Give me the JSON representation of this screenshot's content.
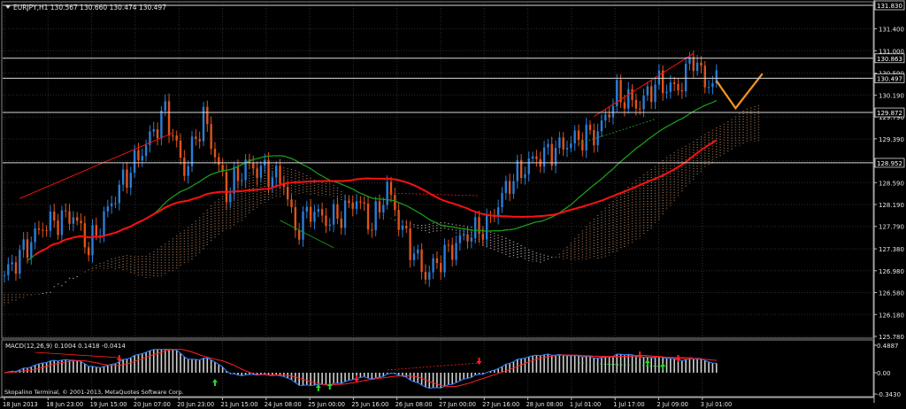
{
  "main_chart": {
    "symbol_header": "EURJPY,H1  130.567 130.660 130.474 130.497",
    "price_range": [
      125.78,
      131.83
    ],
    "y_ticks": [
      "131.830",
      "131.400",
      "131.000",
      "130.590",
      "130.190",
      "129.790",
      "129.390",
      "128.990",
      "128.590",
      "128.190",
      "127.790",
      "127.380",
      "126.980",
      "126.580",
      "126.180",
      "125.780"
    ],
    "level_labels": [
      {
        "label": "131.830",
        "value": 131.83
      },
      {
        "label": "130.863",
        "value": 130.863
      },
      {
        "label": "130.497",
        "value": 130.497
      },
      {
        "label": "129.872",
        "value": 129.872
      },
      {
        "label": "128.952",
        "value": 128.952
      }
    ]
  },
  "macd_panel": {
    "header": "MACD(12,26,9) 0.1004 0.1418 -0.0414",
    "y_labels": [
      "0.4887",
      "0.00",
      "-0.3430"
    ],
    "copyright": "Skopalino Terminal, © 2001-2013, MetaQuotes Software Corp."
  },
  "x_axis": {
    "labels": [
      "18 Jun 2013",
      "18 Jun 23:00",
      "19 Jun 15:00",
      "20 Jun 07:00",
      "20 Jun 23:00",
      "21 Jun 15:00",
      "24 Jun 08:00",
      "25 Jun 00:00",
      "25 Jun 16:00",
      "26 Jun 08:00",
      "27 Jun 00:00",
      "27 Jun 16:00",
      "28 Jun 08:00",
      "1 Jul 01:00",
      "1 Jul 17:00",
      "2 Jul 09:00",
      "3 Jul 01:00"
    ]
  },
  "colors": {
    "background": "#000000",
    "grid": "#2d2d2d",
    "bull": "#2a7ed8",
    "bear": "#e0541c",
    "ma_red": "#ff1010",
    "ma_green": "#1a9a1a",
    "cloud_a": "#d8c8c8",
    "cloud_b": "#b07d5a",
    "projection": "#f7941d",
    "histogram": "#d0d0d0",
    "macd_signal_blue": "#2f80ff",
    "macd_red": "#ff2020",
    "arrow_up": "#22dd22",
    "arrow_down": "#ff2222"
  }
}
